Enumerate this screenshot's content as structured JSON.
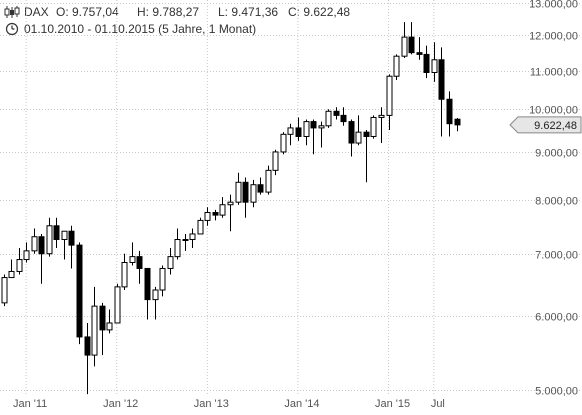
{
  "header": {
    "symbol_icon": "candlestick-icon",
    "name": "DAX",
    "open": "O: 9.757,04",
    "high": "H: 9.788,27",
    "low": "L: 9.471,36",
    "close": "C: 9.622,48",
    "clock_icon": "clock-icon",
    "period": "01.10.2010 - 01.10.2015 (5 Jahre, 1 Monat)"
  },
  "current_price_label": "9.622,48",
  "colors": {
    "up": "#ffffff",
    "down": "#000000",
    "outline": "#000000",
    "grid": "#c8c8c8",
    "tag": "#e6e6e6"
  },
  "chart_data": {
    "type": "candlestick",
    "scale": "log",
    "title": "DAX",
    "ylim": [
      4950,
      13100
    ],
    "y_ticks": [
      5000,
      6000,
      7000,
      8000,
      9000,
      10000,
      11000,
      12000,
      13000
    ],
    "y_tick_labels": [
      "5.000,00",
      "6.000,00",
      "7.000,00",
      "8.000,00",
      "9.000,00",
      "10.000,00",
      "11.000,00",
      "12.000,00",
      "13.000,00"
    ],
    "x_ticks": [
      {
        "label": "Jan '11",
        "index": 3
      },
      {
        "label": "Jan '12",
        "index": 15
      },
      {
        "label": "Jan '13",
        "index": 27
      },
      {
        "label": "Jan '14",
        "index": 39
      },
      {
        "label": "Jan '15",
        "index": 51
      },
      {
        "label": "Jul",
        "index": 57
      }
    ],
    "candles": [
      {
        "x": "Okt 2010",
        "o": 6200,
        "h": 6650,
        "l": 6150,
        "c": 6600
      },
      {
        "x": "Nov 2010",
        "o": 6600,
        "h": 6900,
        "l": 6600,
        "c": 6700
      },
      {
        "x": "Dez 2010",
        "o": 6700,
        "h": 7100,
        "l": 6650,
        "c": 6900
      },
      {
        "x": "Jan 2011",
        "o": 6900,
        "h": 7200,
        "l": 6850,
        "c": 7050
      },
      {
        "x": "Feb 2011",
        "o": 7050,
        "h": 7450,
        "l": 7000,
        "c": 7300
      },
      {
        "x": "Mrz 2011",
        "o": 7300,
        "h": 7350,
        "l": 6500,
        "c": 7000
      },
      {
        "x": "Apr 2011",
        "o": 7000,
        "h": 7650,
        "l": 6950,
        "c": 7500
      },
      {
        "x": "Mai 2011",
        "o": 7500,
        "h": 7650,
        "l": 7100,
        "c": 7250
      },
      {
        "x": "Jun 2011",
        "o": 7250,
        "h": 7400,
        "l": 6900,
        "c": 7400
      },
      {
        "x": "Jul 2011",
        "o": 7400,
        "h": 7500,
        "l": 6750,
        "c": 7150
      },
      {
        "x": "Aug 2011",
        "o": 7150,
        "h": 7200,
        "l": 5600,
        "c": 5700
      },
      {
        "x": "Sep 2011",
        "o": 5700,
        "h": 5900,
        "l": 4950,
        "c": 5450
      },
      {
        "x": "Okt 2011",
        "o": 5450,
        "h": 6450,
        "l": 5300,
        "c": 6150
      },
      {
        "x": "Nov 2011",
        "o": 6150,
        "h": 6200,
        "l": 5450,
        "c": 5800
      },
      {
        "x": "Dez 2011",
        "o": 5800,
        "h": 6100,
        "l": 5750,
        "c": 5900
      },
      {
        "x": "Jan 2012",
        "o": 5900,
        "h": 6500,
        "l": 5900,
        "c": 6450
      },
      {
        "x": "Feb 2012",
        "o": 6450,
        "h": 7000,
        "l": 6400,
        "c": 6850
      },
      {
        "x": "Mrz 2012",
        "o": 6850,
        "h": 7200,
        "l": 6800,
        "c": 6950
      },
      {
        "x": "Apr 2012",
        "o": 6950,
        "h": 7050,
        "l": 6500,
        "c": 6750
      },
      {
        "x": "Mai 2012",
        "o": 6750,
        "h": 6750,
        "l": 5950,
        "c": 6250
      },
      {
        "x": "Jun 2012",
        "o": 6250,
        "h": 6450,
        "l": 5950,
        "c": 6400
      },
      {
        "x": "Jul 2012",
        "o": 6400,
        "h": 6800,
        "l": 6300,
        "c": 6750
      },
      {
        "x": "Aug 2012",
        "o": 6750,
        "h": 7100,
        "l": 6650,
        "c": 6950
      },
      {
        "x": "Sep 2012",
        "o": 6950,
        "h": 7450,
        "l": 6900,
        "c": 7250
      },
      {
        "x": "Okt 2012",
        "o": 7250,
        "h": 7350,
        "l": 7050,
        "c": 7250
      },
      {
        "x": "Nov 2012",
        "o": 7250,
        "h": 7450,
        "l": 7100,
        "c": 7350
      },
      {
        "x": "Dez 2012",
        "o": 7350,
        "h": 7650,
        "l": 7350,
        "c": 7600
      },
      {
        "x": "Jan 2013",
        "o": 7600,
        "h": 7850,
        "l": 7500,
        "c": 7750
      },
      {
        "x": "Feb 2013",
        "o": 7750,
        "h": 7800,
        "l": 7600,
        "c": 7700
      },
      {
        "x": "Mrz 2013",
        "o": 7700,
        "h": 8050,
        "l": 7650,
        "c": 7900
      },
      {
        "x": "Apr 2013",
        "o": 7900,
        "h": 8100,
        "l": 7400,
        "c": 7950
      },
      {
        "x": "Mai 2013",
        "o": 7950,
        "h": 8550,
        "l": 7900,
        "c": 8350
      },
      {
        "x": "Jun 2013",
        "o": 8350,
        "h": 8450,
        "l": 7650,
        "c": 7950
      },
      {
        "x": "Jul 2013",
        "o": 7950,
        "h": 8400,
        "l": 7850,
        "c": 8300
      },
      {
        "x": "Aug 2013",
        "o": 8300,
        "h": 8450,
        "l": 8100,
        "c": 8150
      },
      {
        "x": "Sep 2013",
        "o": 8150,
        "h": 8700,
        "l": 8100,
        "c": 8600
      },
      {
        "x": "Okt 2013",
        "o": 8600,
        "h": 9050,
        "l": 8500,
        "c": 9000
      },
      {
        "x": "Nov 2013",
        "o": 9000,
        "h": 9450,
        "l": 8950,
        "c": 9400
      },
      {
        "x": "Dez 2013",
        "o": 9400,
        "h": 9650,
        "l": 9150,
        "c": 9550
      },
      {
        "x": "Jan 2014",
        "o": 9550,
        "h": 9800,
        "l": 9250,
        "c": 9350
      },
      {
        "x": "Feb 2014",
        "o": 9350,
        "h": 9750,
        "l": 9150,
        "c": 9700
      },
      {
        "x": "Mrz 2014",
        "o": 9700,
        "h": 9750,
        "l": 8950,
        "c": 9550
      },
      {
        "x": "Apr 2014",
        "o": 9550,
        "h": 9700,
        "l": 9100,
        "c": 9600
      },
      {
        "x": "Mai 2014",
        "o": 9600,
        "h": 10000,
        "l": 9550,
        "c": 9950
      },
      {
        "x": "Jun 2014",
        "o": 9950,
        "h": 10050,
        "l": 9750,
        "c": 9850
      },
      {
        "x": "Jul 2014",
        "o": 9850,
        "h": 10050,
        "l": 9600,
        "c": 9700
      },
      {
        "x": "Aug 2014",
        "o": 9700,
        "h": 9750,
        "l": 8900,
        "c": 9200
      },
      {
        "x": "Sep 2014",
        "o": 9200,
        "h": 9850,
        "l": 9150,
        "c": 9450
      },
      {
        "x": "Okt 2014",
        "o": 9450,
        "h": 9500,
        "l": 8350,
        "c": 9350
      },
      {
        "x": "Nov 2014",
        "o": 9350,
        "h": 9850,
        "l": 9300,
        "c": 9800
      },
      {
        "x": "Dez 2014",
        "o": 9800,
        "h": 10050,
        "l": 9200,
        "c": 9850
      },
      {
        "x": "Jan 2015",
        "o": 9850,
        "h": 10900,
        "l": 9500,
        "c": 10850
      },
      {
        "x": "Feb 2015",
        "o": 10850,
        "h": 11450,
        "l": 10750,
        "c": 11400
      },
      {
        "x": "Mrz 2015",
        "o": 11400,
        "h": 12400,
        "l": 11350,
        "c": 11950
      },
      {
        "x": "Apr 2015",
        "o": 11950,
        "h": 12400,
        "l": 11450,
        "c": 11500
      },
      {
        "x": "Mai 2015",
        "o": 11500,
        "h": 11950,
        "l": 11300,
        "c": 11450
      },
      {
        "x": "Jun 2015",
        "o": 11450,
        "h": 11700,
        "l": 10800,
        "c": 10950
      },
      {
        "x": "Jul 2015",
        "o": 10950,
        "h": 11800,
        "l": 10700,
        "c": 11300
      },
      {
        "x": "Aug 2015",
        "o": 11300,
        "h": 11650,
        "l": 9350,
        "c": 10250
      },
      {
        "x": "Sep 2015",
        "o": 10250,
        "h": 10450,
        "l": 9350,
        "c": 9650
      },
      {
        "x": "Okt 2015",
        "o": 9757,
        "h": 9788,
        "l": 9471,
        "c": 9622
      }
    ]
  }
}
